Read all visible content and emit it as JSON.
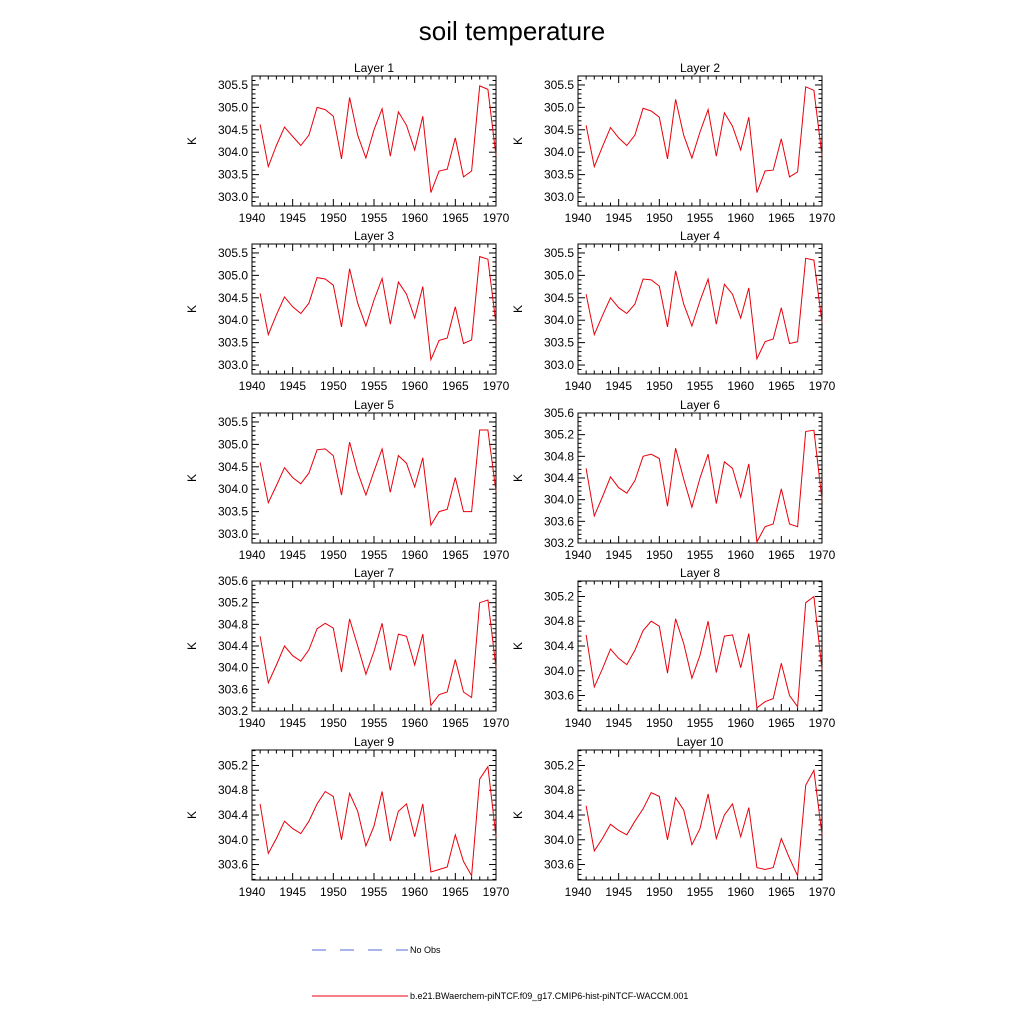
{
  "title": "soil temperature",
  "legend": {
    "obs_label": "No Obs",
    "model_label": "b.e21.BWaerchem-piNTCF.f09_g17.CMIP6-hist-piNTCF-WACCM.001",
    "obs_color": "#4f6bd8",
    "model_color": "#e8000b"
  },
  "chart_data": [
    {
      "type": "line",
      "title": "Layer 1",
      "ylabel": "K",
      "xlim": [
        1940,
        1970
      ],
      "ylim": [
        302.8,
        305.7
      ],
      "xticks": [
        1940,
        1945,
        1950,
        1955,
        1960,
        1965,
        1970
      ],
      "yticks": [
        "303.0",
        "303.5",
        "304.0",
        "304.5",
        "305.0",
        "305.5"
      ],
      "x": [
        1941,
        1942,
        1943,
        1944,
        1945,
        1946,
        1947,
        1948,
        1949,
        1950,
        1951,
        1952,
        1953,
        1954,
        1955,
        1956,
        1957,
        1958,
        1959,
        1960,
        1961,
        1962,
        1963,
        1964,
        1965,
        1966,
        1967,
        1968,
        1969,
        1970
      ],
      "series": [
        {
          "values": [
            304.62,
            303.68,
            304.15,
            304.56,
            304.35,
            304.15,
            304.38,
            305.0,
            304.95,
            304.8,
            303.85,
            305.22,
            304.38,
            303.87,
            304.5,
            304.97,
            303.91,
            304.9,
            304.6,
            304.05,
            304.8,
            303.1,
            303.58,
            303.62,
            304.32,
            303.45,
            303.58,
            305.48,
            305.4,
            303.92
          ]
        }
      ]
    },
    {
      "type": "line",
      "title": "Layer 2",
      "ylabel": "K",
      "xlim": [
        1940,
        1970
      ],
      "ylim": [
        302.8,
        305.7
      ],
      "xticks": [
        1940,
        1945,
        1950,
        1955,
        1960,
        1965,
        1970
      ],
      "yticks": [
        "303.0",
        "303.5",
        "304.0",
        "304.5",
        "305.0",
        "305.5"
      ],
      "x": [
        1941,
        1942,
        1943,
        1944,
        1945,
        1946,
        1947,
        1948,
        1949,
        1950,
        1951,
        1952,
        1953,
        1954,
        1955,
        1956,
        1957,
        1958,
        1959,
        1960,
        1961,
        1962,
        1963,
        1964,
        1965,
        1966,
        1967,
        1968,
        1969,
        1970
      ],
      "series": [
        {
          "values": [
            304.6,
            303.68,
            304.12,
            304.55,
            304.32,
            304.15,
            304.38,
            304.98,
            304.92,
            304.78,
            303.85,
            305.18,
            304.38,
            303.87,
            304.45,
            304.95,
            303.91,
            304.88,
            304.58,
            304.05,
            304.78,
            303.1,
            303.58,
            303.6,
            304.3,
            303.45,
            303.56,
            305.46,
            305.38,
            303.92
          ]
        }
      ]
    },
    {
      "type": "line",
      "title": "Layer 3",
      "ylabel": "K",
      "xlim": [
        1940,
        1970
      ],
      "ylim": [
        302.8,
        305.7
      ],
      "xticks": [
        1940,
        1945,
        1950,
        1955,
        1960,
        1965,
        1970
      ],
      "yticks": [
        "303.0",
        "303.5",
        "304.0",
        "304.5",
        "305.0",
        "305.5"
      ],
      "x": [
        1941,
        1942,
        1943,
        1944,
        1945,
        1946,
        1947,
        1948,
        1949,
        1950,
        1951,
        1952,
        1953,
        1954,
        1955,
        1956,
        1957,
        1958,
        1959,
        1960,
        1961,
        1962,
        1963,
        1964,
        1965,
        1966,
        1967,
        1968,
        1969,
        1970
      ],
      "series": [
        {
          "values": [
            304.6,
            303.68,
            304.12,
            304.52,
            304.3,
            304.15,
            304.38,
            304.95,
            304.92,
            304.78,
            303.85,
            305.15,
            304.38,
            303.87,
            304.45,
            304.93,
            303.91,
            304.85,
            304.58,
            304.05,
            304.75,
            303.12,
            303.55,
            303.6,
            304.3,
            303.48,
            303.56,
            305.42,
            305.36,
            303.92
          ]
        }
      ]
    },
    {
      "type": "line",
      "title": "Layer 4",
      "ylabel": "K",
      "xlim": [
        1940,
        1970
      ],
      "ylim": [
        302.8,
        305.7
      ],
      "xticks": [
        1940,
        1945,
        1950,
        1955,
        1960,
        1965,
        1970
      ],
      "yticks": [
        "303.0",
        "303.5",
        "304.0",
        "304.5",
        "305.0",
        "305.5"
      ],
      "x": [
        1941,
        1942,
        1943,
        1944,
        1945,
        1946,
        1947,
        1948,
        1949,
        1950,
        1951,
        1952,
        1953,
        1954,
        1955,
        1956,
        1957,
        1958,
        1959,
        1960,
        1961,
        1962,
        1963,
        1964,
        1965,
        1966,
        1967,
        1968,
        1969,
        1970
      ],
      "series": [
        {
          "values": [
            304.58,
            303.68,
            304.1,
            304.5,
            304.28,
            304.15,
            304.36,
            304.92,
            304.9,
            304.76,
            303.85,
            305.1,
            304.36,
            303.87,
            304.43,
            304.92,
            303.91,
            304.8,
            304.58,
            304.05,
            304.72,
            303.14,
            303.52,
            303.58,
            304.28,
            303.48,
            303.52,
            305.38,
            305.34,
            303.95
          ]
        }
      ]
    },
    {
      "type": "line",
      "title": "Layer 5",
      "ylabel": "K",
      "xlim": [
        1940,
        1970
      ],
      "ylim": [
        302.8,
        305.7
      ],
      "xticks": [
        1940,
        1945,
        1950,
        1955,
        1960,
        1965,
        1970
      ],
      "yticks": [
        "303.0",
        "303.5",
        "304.0",
        "304.5",
        "305.0",
        "305.5"
      ],
      "x": [
        1941,
        1942,
        1943,
        1944,
        1945,
        1946,
        1947,
        1948,
        1949,
        1950,
        1951,
        1952,
        1953,
        1954,
        1955,
        1956,
        1957,
        1958,
        1959,
        1960,
        1961,
        1962,
        1963,
        1964,
        1965,
        1966,
        1967,
        1968,
        1969,
        1970
      ],
      "series": [
        {
          "values": [
            304.6,
            303.7,
            304.08,
            304.48,
            304.26,
            304.12,
            304.36,
            304.88,
            304.9,
            304.75,
            303.87,
            305.05,
            304.38,
            303.87,
            304.4,
            304.9,
            303.93,
            304.75,
            304.58,
            304.05,
            304.7,
            303.2,
            303.5,
            303.55,
            304.26,
            303.5,
            303.5,
            305.32,
            305.32,
            303.95
          ]
        }
      ]
    },
    {
      "type": "line",
      "title": "Layer 6",
      "ylabel": "K",
      "xlim": [
        1940,
        1970
      ],
      "ylim": [
        303.2,
        305.6
      ],
      "xticks": [
        1940,
        1945,
        1950,
        1955,
        1960,
        1965,
        1970
      ],
      "yticks": [
        "303.2",
        "303.6",
        "304.0",
        "304.4",
        "304.8",
        "305.2",
        "305.6"
      ],
      "x": [
        1941,
        1942,
        1943,
        1944,
        1945,
        1946,
        1947,
        1948,
        1949,
        1950,
        1951,
        1952,
        1953,
        1954,
        1955,
        1956,
        1957,
        1958,
        1959,
        1960,
        1961,
        1962,
        1963,
        1964,
        1965,
        1966,
        1967,
        1968,
        1969,
        1970
      ],
      "series": [
        {
          "values": [
            304.58,
            303.7,
            304.05,
            304.42,
            304.22,
            304.12,
            304.35,
            304.8,
            304.84,
            304.76,
            303.88,
            304.95,
            304.38,
            303.86,
            304.4,
            304.84,
            303.93,
            304.7,
            304.58,
            304.05,
            304.66,
            303.22,
            303.5,
            303.55,
            304.2,
            303.55,
            303.5,
            305.26,
            305.28,
            304.0
          ]
        }
      ]
    },
    {
      "type": "line",
      "title": "Layer 7",
      "ylabel": "K",
      "xlim": [
        1940,
        1970
      ],
      "ylim": [
        303.2,
        305.6
      ],
      "xticks": [
        1940,
        1945,
        1950,
        1955,
        1960,
        1965,
        1970
      ],
      "yticks": [
        "303.2",
        "303.6",
        "304.0",
        "304.4",
        "304.8",
        "305.2",
        "305.6"
      ],
      "x": [
        1941,
        1942,
        1943,
        1944,
        1945,
        1946,
        1947,
        1948,
        1949,
        1950,
        1951,
        1952,
        1953,
        1954,
        1955,
        1956,
        1957,
        1958,
        1959,
        1960,
        1961,
        1962,
        1963,
        1964,
        1965,
        1966,
        1967,
        1968,
        1969,
        1970
      ],
      "series": [
        {
          "values": [
            304.58,
            303.72,
            304.05,
            304.4,
            304.22,
            304.12,
            304.33,
            304.72,
            304.82,
            304.73,
            303.92,
            304.9,
            304.4,
            303.88,
            304.3,
            304.82,
            303.95,
            304.62,
            304.58,
            304.05,
            304.62,
            303.3,
            303.5,
            303.55,
            304.15,
            303.55,
            303.45,
            305.2,
            305.25,
            304.0
          ]
        }
      ]
    },
    {
      "type": "line",
      "title": "Layer 8",
      "ylabel": "K",
      "xlim": [
        1940,
        1970
      ],
      "ylim": [
        303.35,
        305.45
      ],
      "xticks": [
        1940,
        1945,
        1950,
        1955,
        1960,
        1965,
        1970
      ],
      "yticks": [
        "303.6",
        "304.0",
        "304.4",
        "304.8",
        "305.2"
      ],
      "x": [
        1941,
        1942,
        1943,
        1944,
        1945,
        1946,
        1947,
        1948,
        1949,
        1950,
        1951,
        1952,
        1953,
        1954,
        1955,
        1956,
        1957,
        1958,
        1959,
        1960,
        1961,
        1962,
        1963,
        1964,
        1965,
        1966,
        1967,
        1968,
        1969,
        1970
      ],
      "series": [
        {
          "values": [
            304.58,
            303.74,
            304.03,
            304.35,
            304.2,
            304.1,
            304.33,
            304.65,
            304.8,
            304.72,
            303.96,
            304.84,
            304.44,
            303.88,
            304.25,
            304.8,
            303.97,
            304.56,
            304.58,
            304.05,
            304.6,
            303.4,
            303.5,
            303.55,
            304.12,
            303.6,
            303.42,
            305.1,
            305.2,
            304.02
          ]
        }
      ]
    },
    {
      "type": "line",
      "title": "Layer 9",
      "ylabel": "K",
      "xlim": [
        1940,
        1970
      ],
      "ylim": [
        303.35,
        305.45
      ],
      "xticks": [
        1940,
        1945,
        1950,
        1955,
        1960,
        1965,
        1970
      ],
      "yticks": [
        "303.6",
        "304.0",
        "304.4",
        "304.8",
        "305.2"
      ],
      "x": [
        1941,
        1942,
        1943,
        1944,
        1945,
        1946,
        1947,
        1948,
        1949,
        1950,
        1951,
        1952,
        1953,
        1954,
        1955,
        1956,
        1957,
        1958,
        1959,
        1960,
        1961,
        1962,
        1963,
        1964,
        1965,
        1966,
        1967,
        1968,
        1969,
        1970
      ],
      "series": [
        {
          "values": [
            304.58,
            303.78,
            304.02,
            304.3,
            304.18,
            304.1,
            304.3,
            304.58,
            304.78,
            304.7,
            304.0,
            304.75,
            304.46,
            303.9,
            304.22,
            304.78,
            303.98,
            304.46,
            304.58,
            304.05,
            304.58,
            303.48,
            303.52,
            303.56,
            304.08,
            303.65,
            303.42,
            304.98,
            305.18,
            304.05
          ]
        }
      ]
    },
    {
      "type": "line",
      "title": "Layer 10",
      "ylabel": "K",
      "xlim": [
        1940,
        1970
      ],
      "ylim": [
        303.35,
        305.45
      ],
      "xticks": [
        1940,
        1945,
        1950,
        1955,
        1960,
        1965,
        1970
      ],
      "yticks": [
        "303.6",
        "304.0",
        "304.4",
        "304.8",
        "305.2"
      ],
      "x": [
        1941,
        1942,
        1943,
        1944,
        1945,
        1946,
        1947,
        1948,
        1949,
        1950,
        1951,
        1952,
        1953,
        1954,
        1955,
        1956,
        1957,
        1958,
        1959,
        1960,
        1961,
        1962,
        1963,
        1964,
        1965,
        1966,
        1967,
        1968,
        1969,
        1970
      ],
      "series": [
        {
          "values": [
            304.55,
            303.82,
            304.02,
            304.25,
            304.15,
            304.08,
            304.3,
            304.5,
            304.76,
            304.7,
            304.0,
            304.68,
            304.48,
            303.92,
            304.18,
            304.74,
            304.02,
            304.4,
            304.58,
            304.05,
            304.52,
            303.55,
            303.52,
            303.55,
            304.02,
            303.7,
            303.42,
            304.88,
            305.12,
            304.08
          ]
        }
      ]
    }
  ]
}
